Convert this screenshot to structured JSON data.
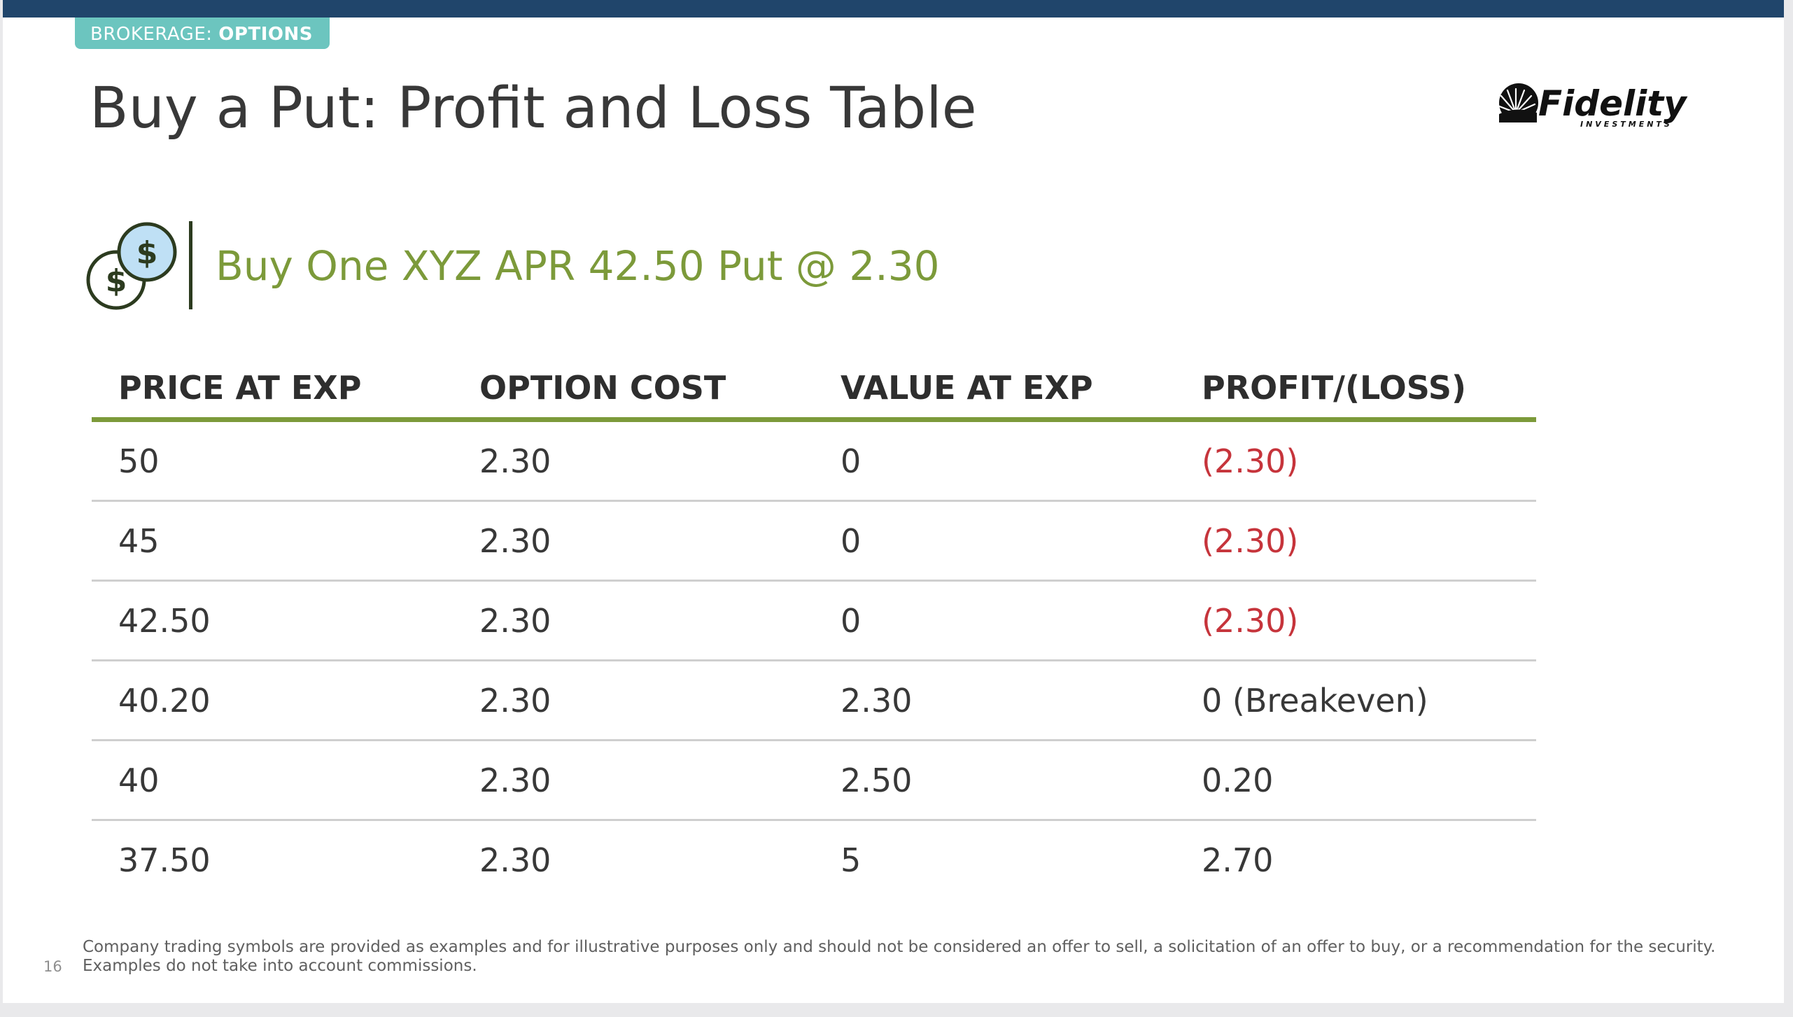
{
  "header": {
    "category_label": "BROKERAGE:",
    "category_value": "OPTIONS",
    "title": "Buy a Put: Profit and Loss Table",
    "logo_icon": "fidelity-starburst-icon",
    "logo_name": "Fidelity",
    "logo_subtext": "INVESTMENTS"
  },
  "trade": {
    "icon": "dollar-coins-icon",
    "title": "Buy One XYZ APR 42.50 Put @ 2.30"
  },
  "table": {
    "headers": [
      "PRICE AT EXP",
      "OPTION COST",
      "VALUE AT EXP",
      "PROFIT/(LOSS)"
    ],
    "rows": [
      [
        "50",
        "2.30",
        "0",
        "(2.30)"
      ],
      [
        "45",
        "2.30",
        "0",
        "(2.30)"
      ],
      [
        "42.50",
        "2.30",
        "0",
        "(2.30)"
      ],
      [
        "40.20",
        "2.30",
        "2.30",
        "0 (Breakeven)"
      ],
      [
        "40",
        "2.30",
        "2.50",
        "0.20"
      ],
      [
        "37.50",
        "2.30",
        "5",
        "2.70"
      ]
    ]
  },
  "footer": {
    "page_number": "16",
    "disclaimer_line1": "Company trading symbols are provided as examples and for illustrative purposes only and should not be considered an offer to  sell, a solicitation of an offer to buy, or a recommendation for the security.",
    "disclaimer_line2": "Examples do not take into account commissions."
  },
  "colors": {
    "top_bar": "#20456b",
    "tag_background": "#6cc5bf",
    "accent_green": "#7c9a3a",
    "loss_red": "#c6343b",
    "coin_fill": "#bfe0f5",
    "coin_stroke": "#2c3b1f"
  }
}
